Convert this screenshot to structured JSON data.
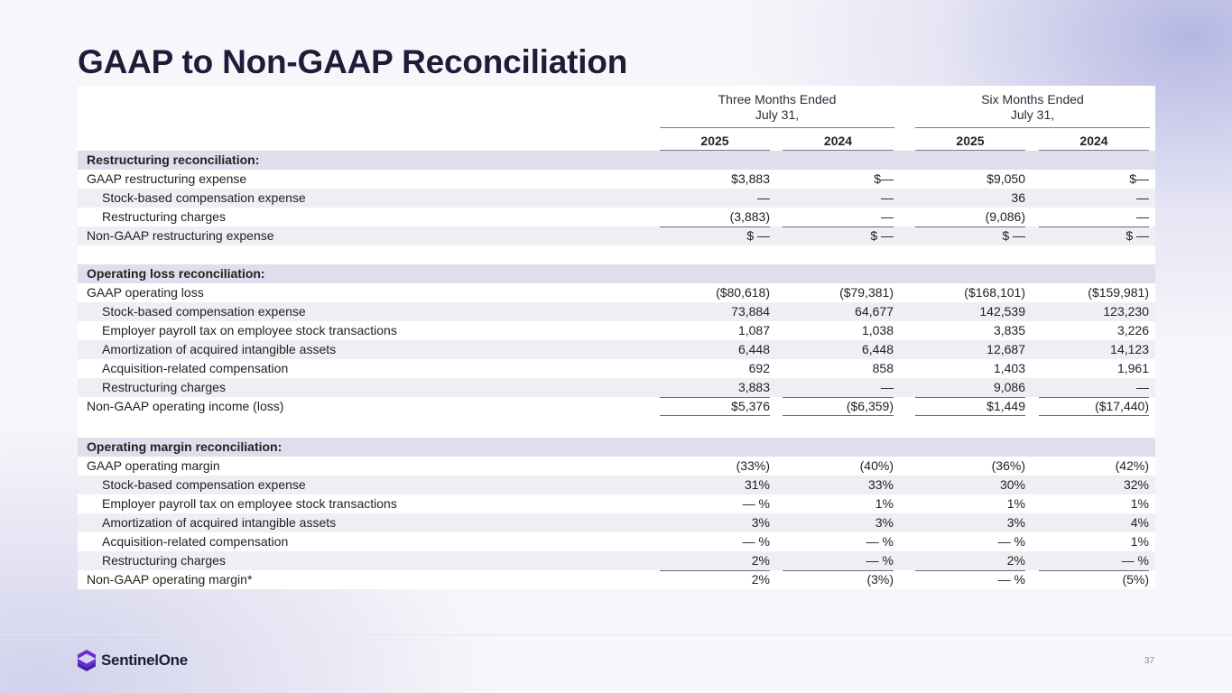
{
  "title": "GAAP to Non-GAAP Reconciliation",
  "header": {
    "groups": [
      {
        "line1": "Three Months Ended",
        "line2": "July 31,"
      },
      {
        "line1": "Six Months Ended",
        "line2": "July 31,"
      }
    ],
    "years": [
      "2025",
      "2024",
      "2025",
      "2024"
    ]
  },
  "sections": {
    "restructuring": {
      "title": "Restructuring reconciliation:",
      "rows": [
        {
          "label": "GAAP restructuring expense",
          "v": [
            "$3,883",
            "$—",
            "$9,050",
            "$—"
          ]
        },
        {
          "label": "Stock-based compensation expense",
          "v": [
            "—",
            "—",
            "36",
            "—"
          ]
        },
        {
          "label": "Restructuring charges",
          "v": [
            "(3,883)",
            "—",
            "(9,086)",
            "—"
          ]
        },
        {
          "label": "Non-GAAP restructuring expense",
          "v": [
            "$ —",
            "$ —",
            "$ —",
            "$ —"
          ]
        }
      ]
    },
    "operating_loss": {
      "title": "Operating loss reconciliation:",
      "rows": [
        {
          "label": "GAAP operating loss",
          "v": [
            "($80,618)",
            "($79,381)",
            "($168,101)",
            "($159,981)"
          ]
        },
        {
          "label": "Stock-based compensation expense",
          "v": [
            "73,884",
            "64,677",
            "142,539",
            "123,230"
          ]
        },
        {
          "label": "Employer payroll tax on employee stock transactions",
          "v": [
            "1,087",
            "1,038",
            "3,835",
            "3,226"
          ]
        },
        {
          "label": "Amortization of acquired intangible assets",
          "v": [
            "6,448",
            "6,448",
            "12,687",
            "14,123"
          ]
        },
        {
          "label": "Acquisition-related compensation",
          "v": [
            "692",
            "858",
            "1,403",
            "1,961"
          ]
        },
        {
          "label": "Restructuring charges",
          "v": [
            "3,883",
            "—",
            "9,086",
            "—"
          ]
        },
        {
          "label": "Non-GAAP operating income (loss)",
          "v": [
            "$5,376",
            "($6,359)",
            "$1,449",
            "($17,440)"
          ]
        }
      ]
    },
    "operating_margin": {
      "title": "Operating margin reconciliation:",
      "rows": [
        {
          "label": "GAAP operating margin",
          "v": [
            "(33%)",
            "(40%)",
            "(36%)",
            "(42%)"
          ]
        },
        {
          "label": "Stock-based compensation expense",
          "v": [
            "31%",
            "33%",
            "30%",
            "32%"
          ]
        },
        {
          "label": "Employer payroll tax on employee stock transactions",
          "v": [
            "— %",
            "1%",
            "1%",
            "1%"
          ]
        },
        {
          "label": "Amortization of acquired intangible assets",
          "v": [
            "3%",
            "3%",
            "3%",
            "4%"
          ]
        },
        {
          "label": "Acquisition-related compensation",
          "v": [
            "— %",
            "— %",
            "— %",
            "1%"
          ]
        },
        {
          "label": "Restructuring charges",
          "v": [
            "2%",
            "— %",
            "2%",
            "— %"
          ]
        },
        {
          "label": "Non-GAAP operating margin*",
          "v": [
            "2%",
            "(3%)",
            "— %",
            "(5%)"
          ]
        }
      ]
    }
  },
  "footer": {
    "logo_text": "SentinelOne",
    "logo_icon": "sentinelone-logo-icon",
    "page_number": "37",
    "brand_color": "#6b2fd6"
  }
}
